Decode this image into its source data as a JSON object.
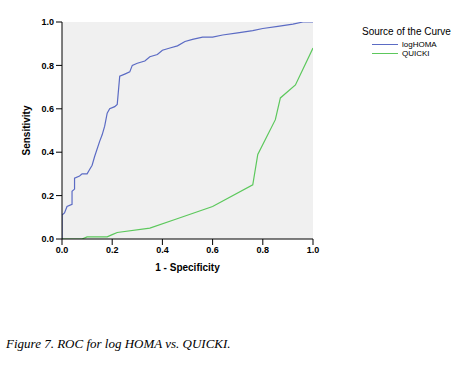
{
  "chart_data": {
    "type": "line",
    "caption": "Figure 7. ROC for log HOMA vs. QUICKI.",
    "x_label": "1 - Specificity",
    "y_label": "Sensitivity",
    "legend": "right",
    "legend_title": "Source of the Curve",
    "grid": false,
    "xlim": [
      0,
      1
    ],
    "ylim": [
      0,
      1
    ],
    "xticks": [
      {
        "value": 0,
        "label": "0.0"
      },
      {
        "value": 0.2,
        "label": "0.2"
      },
      {
        "value": 0.4,
        "label": "0.4"
      },
      {
        "value": 0.6,
        "label": "0.6"
      },
      {
        "value": 0.8,
        "label": "0.8"
      },
      {
        "value": 1,
        "label": "1.0"
      }
    ],
    "yticks": [
      {
        "value": 0,
        "label": "0.0"
      },
      {
        "value": 0.2,
        "label": "0.2"
      },
      {
        "value": 0.4,
        "label": "0.4"
      },
      {
        "value": 0.6,
        "label": "0.6"
      },
      {
        "value": 0.8,
        "label": "0.8"
      },
      {
        "value": 1,
        "label": "1.0"
      }
    ],
    "series": [
      {
        "name": "logHOMA",
        "color": "#5b6bc4",
        "x": [
          0,
          0,
          0.01,
          0.02,
          0.04,
          0.04,
          0.05,
          0.05,
          0.07,
          0.08,
          0.1,
          0.11,
          0.12,
          0.13,
          0.15,
          0.16,
          0.17,
          0.18,
          0.19,
          0.21,
          0.22,
          0.23,
          0.25,
          0.27,
          0.28,
          0.3,
          0.33,
          0.35,
          0.38,
          0.4,
          0.43,
          0.46,
          0.49,
          0.52,
          0.56,
          0.6,
          0.64,
          0.7,
          0.76,
          0.8,
          0.86,
          0.92,
          0.96,
          1
        ],
        "values": [
          0,
          0.11,
          0.12,
          0.15,
          0.16,
          0.22,
          0.23,
          0.28,
          0.29,
          0.3,
          0.3,
          0.32,
          0.34,
          0.38,
          0.45,
          0.48,
          0.52,
          0.58,
          0.6,
          0.61,
          0.62,
          0.75,
          0.76,
          0.77,
          0.8,
          0.81,
          0.82,
          0.84,
          0.85,
          0.87,
          0.88,
          0.89,
          0.91,
          0.92,
          0.93,
          0.93,
          0.94,
          0.95,
          0.96,
          0.97,
          0.98,
          0.99,
          1,
          1
        ]
      },
      {
        "name": "QUICKI",
        "color": "#5cc85c",
        "x": [
          0,
          0.08,
          0.1,
          0.18,
          0.2,
          0.22,
          0.35,
          0.45,
          0.6,
          0.76,
          0.78,
          0.85,
          0.87,
          0.93,
          1
        ],
        "values": [
          0,
          0,
          0.01,
          0.01,
          0.02,
          0.03,
          0.05,
          0.09,
          0.15,
          0.25,
          0.39,
          0.55,
          0.65,
          0.71,
          0.88
        ]
      }
    ]
  }
}
